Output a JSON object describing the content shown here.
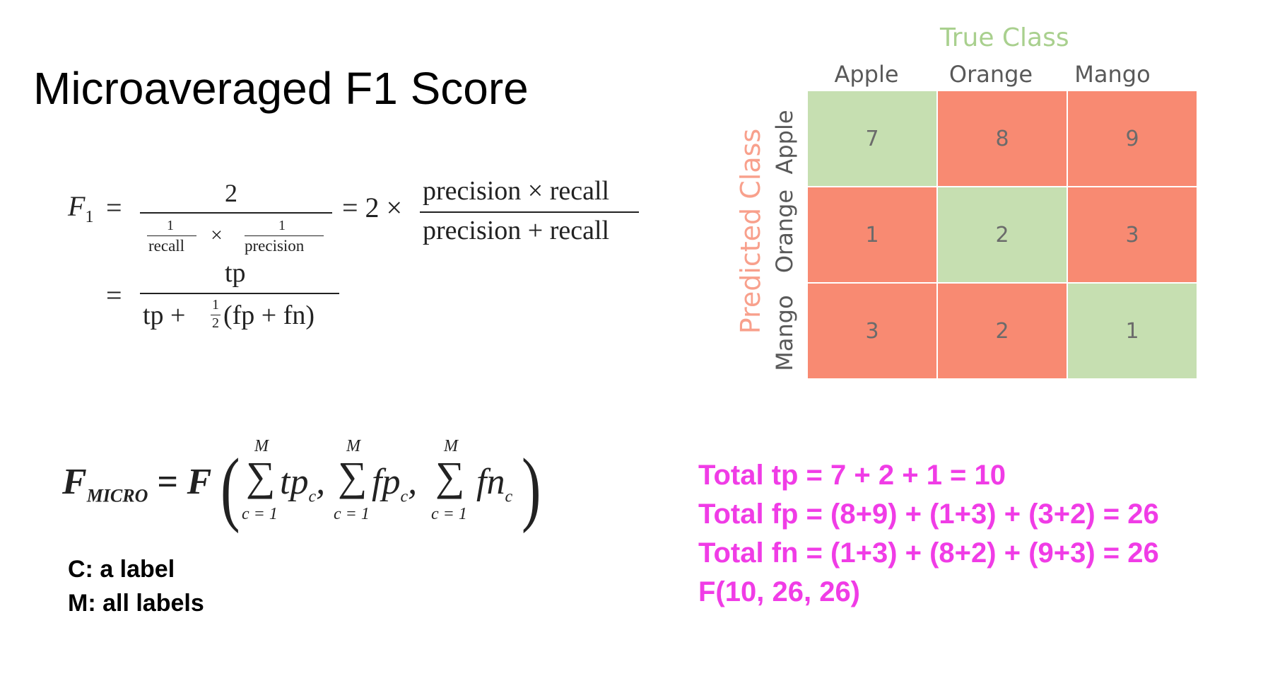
{
  "slide": {
    "title": "Microaveraged F1 Score"
  },
  "formula_f1": {
    "lhs": "F",
    "lhs_sub": "1",
    "eq": "=",
    "num1": "2",
    "one": "1",
    "recall": "recall",
    "times": "×",
    "precision": "precision",
    "eq2": "= 2 ×",
    "num2": "precision × recall",
    "den2": "precision + recall",
    "eq3": "=",
    "num3": "tp",
    "den3_a": "tp +",
    "half_num": "1",
    "half_den": "2",
    "den3_b": "(fp + fn)"
  },
  "formula_micro": {
    "lhs": "F",
    "lhs_sub": "MICRO",
    "rhs": "= F",
    "upper": "M",
    "lower": "c = 1",
    "sum": "∑",
    "term1": "tp",
    "term2": "fp",
    "term3": "fn",
    "sub": "c",
    "comma": ","
  },
  "legend": {
    "c_line": "C: a label",
    "m_line": "M: all labels"
  },
  "matrix": {
    "title": "True Class",
    "predicted_label": "Predicted Class",
    "columns": [
      "Apple",
      "Orange",
      "Mango"
    ],
    "rows": [
      "Apple",
      "Orange",
      "Mango"
    ],
    "cells": [
      [
        "7",
        "8",
        "9"
      ],
      [
        "1",
        "2",
        "3"
      ],
      [
        "3",
        "2",
        "1"
      ]
    ],
    "colors": {
      "correct": "#c6dfb1",
      "incorrect": "#f88a72",
      "title": "#a9d08e",
      "predicted": "#f8a08c"
    }
  },
  "calculation": {
    "color": "#f03ce6",
    "lines": [
      "Total tp = 7 + 2 + 1 = 10",
      "Total fp = (8+9) + (1+3) + (3+2) = 26",
      "Total fn = (1+3) + (8+2) + (9+3) = 26",
      "F(10, 26, 26)"
    ]
  }
}
